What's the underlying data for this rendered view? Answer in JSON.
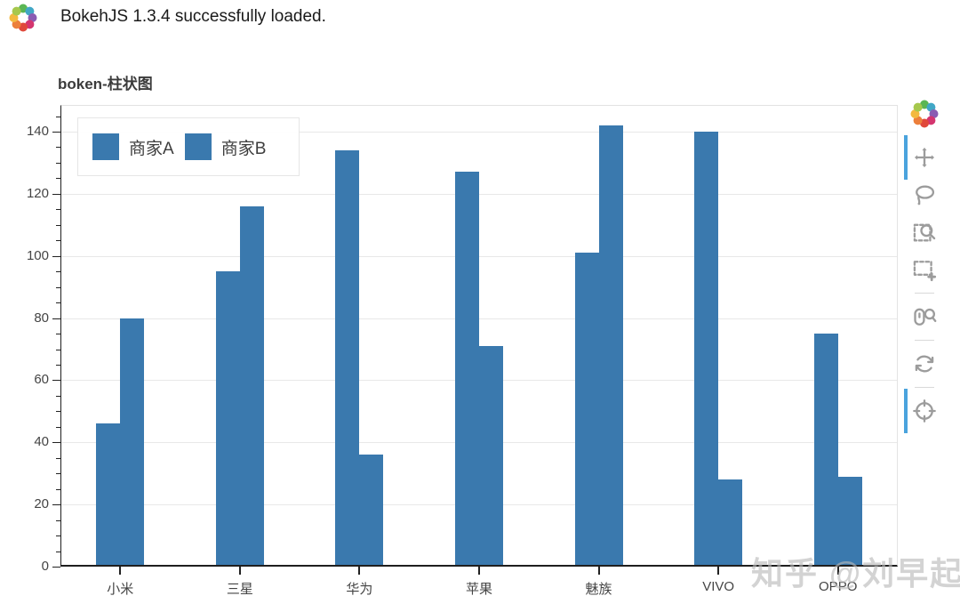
{
  "header": {
    "status_text": "BokehJS 1.3.4 successfully loaded.",
    "logo_icon": "bokeh-logo"
  },
  "chart_data": {
    "type": "bar",
    "title": "boken-柱状图",
    "categories": [
      "小米",
      "三星",
      "华为",
      "苹果",
      "魅族",
      "VIVO",
      "OPPO"
    ],
    "series": [
      {
        "name": "商家A",
        "values": [
          46,
          95,
          134,
          127,
          101,
          140,
          75
        ]
      },
      {
        "name": "商家B",
        "values": [
          80,
          116,
          36,
          71,
          142,
          28,
          29
        ]
      }
    ],
    "xlabel": "",
    "ylabel": "",
    "ylim": [
      0,
      148
    ],
    "yticks": [
      0,
      20,
      40,
      60,
      80,
      100,
      120,
      140
    ],
    "grid": "horizontal-only",
    "legend_position": "top_left",
    "bar_color": "#3a79ae"
  },
  "colors": {
    "bar": "#3a79ae",
    "grid": "#e8e8e8",
    "axis": "#1f1f1f",
    "tick_label": "#444444",
    "active_tool": "#4aa3dd",
    "tool_icon": "#9c9c9c"
  },
  "toolbar": {
    "logo_icon": "bokeh-logo",
    "tools": [
      {
        "id": "pan",
        "icon": "pan-icon",
        "active": true
      },
      {
        "id": "lasso",
        "icon": "lasso-select-icon",
        "active": false
      },
      {
        "id": "box-zoom",
        "icon": "box-zoom-icon",
        "active": false
      },
      {
        "id": "box-select",
        "icon": "box-select-icon",
        "active": false
      },
      {
        "id": "wheel-zoom",
        "icon": "wheel-zoom-icon",
        "active": false
      },
      {
        "id": "reset",
        "icon": "reset-icon",
        "active": false
      },
      {
        "id": "crosshair",
        "icon": "crosshair-icon",
        "active": true
      }
    ]
  },
  "watermark": {
    "text": "知乎 @刘早起"
  }
}
